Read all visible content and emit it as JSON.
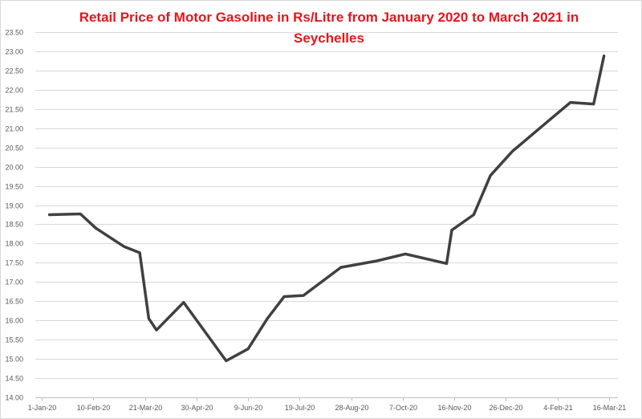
{
  "chart_data": {
    "type": "line",
    "title": "Retail Price of Motor Gasoline in Rs/Litre from January 2020 to March 2021 in Seychelles",
    "xlabel": "",
    "ylabel": "",
    "ylim": [
      14.0,
      23.5
    ],
    "yticks": [
      "14.00",
      "14.50",
      "15.00",
      "15.50",
      "16.00",
      "16.50",
      "17.00",
      "17.50",
      "18.00",
      "18.50",
      "19.00",
      "19.50",
      "20.00",
      "20.50",
      "21.00",
      "21.50",
      "22.00",
      "22.50",
      "23.00",
      "23.50"
    ],
    "xlim": [
      "2020-01-01",
      "2021-03-16"
    ],
    "xticks": [
      "2020-01-01",
      "2020-02-10",
      "2020-03-21",
      "2020-04-30",
      "2020-06-09",
      "2020-07-19",
      "2020-08-28",
      "2020-10-07",
      "2020-11-16",
      "2020-12-26",
      "2021-02-04",
      "2021-03-16"
    ],
    "xtick_labels": [
      "1-Jan-20",
      "10-Feb-20",
      "21-Mar-20",
      "30-Apr-20",
      "9-Jun-20",
      "19-Jul-20",
      "28-Aug-20",
      "7-Oct-20",
      "16-Nov-20",
      "26-Dec-20",
      "4-Feb-21",
      "16-Mar-21"
    ],
    "grid": "horizontal",
    "line_color": "#404040",
    "title_color": "#e8141c",
    "series": [
      {
        "x": [
          "2020-01-07",
          "2020-01-31",
          "2020-02-12",
          "2020-03-05",
          "2020-03-17",
          "2020-03-24",
          "2020-03-30",
          "2020-04-20",
          "2020-05-23",
          "2020-06-09",
          "2020-06-24",
          "2020-07-07",
          "2020-07-22",
          "2020-08-20",
          "2020-09-17",
          "2020-10-09",
          "2020-11-10",
          "2020-11-14",
          "2020-12-01",
          "2020-12-14",
          "2020-12-31",
          "2021-01-30",
          "2021-02-14",
          "2021-03-04",
          "2021-03-12"
        ],
        "values": [
          18.75,
          18.77,
          18.4,
          17.92,
          17.76,
          16.05,
          15.75,
          16.47,
          14.95,
          15.26,
          16.05,
          16.62,
          16.65,
          17.38,
          17.55,
          17.73,
          17.48,
          18.35,
          18.75,
          19.77,
          20.4,
          21.25,
          21.67,
          21.63,
          22.88
        ]
      }
    ]
  }
}
